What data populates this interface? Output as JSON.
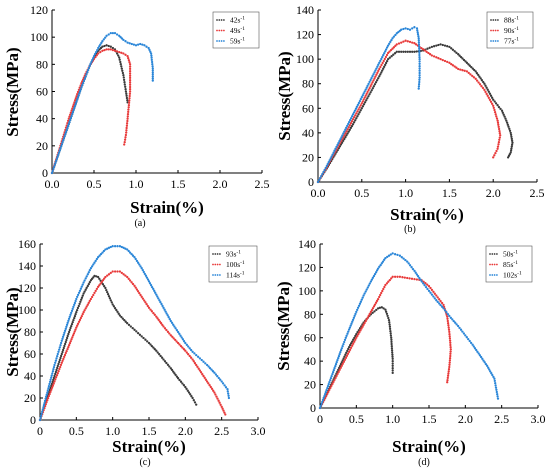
{
  "chart_data": [
    {
      "type": "scatter",
      "panel_label": "(a)",
      "xlabel": "Strain(%)",
      "ylabel": "Stress(MPa)",
      "xlim": [
        0,
        2.5
      ],
      "ylim": [
        0,
        120
      ],
      "xticks": [
        "0.0",
        "0.5",
        "1.0",
        "1.5",
        "2.0",
        "2.5"
      ],
      "yticks": [
        "0",
        "20",
        "40",
        "60",
        "80",
        "100",
        "120"
      ],
      "legend_position": "top-right",
      "series": [
        {
          "name": "42s",
          "color": "#3a3a3a",
          "x": [
            0.0,
            0.05,
            0.1,
            0.15,
            0.2,
            0.25,
            0.3,
            0.35,
            0.4,
            0.45,
            0.5,
            0.55,
            0.6,
            0.65,
            0.7,
            0.75,
            0.8,
            0.85,
            0.88,
            0.9
          ],
          "y": [
            0,
            9,
            18,
            27,
            36,
            45,
            54,
            63,
            71,
            79,
            85,
            90,
            93,
            94,
            93,
            91,
            85,
            72,
            60,
            52
          ]
        },
        {
          "name": "49s",
          "color": "#e83a3a",
          "x": [
            0.0,
            0.05,
            0.1,
            0.15,
            0.2,
            0.25,
            0.3,
            0.35,
            0.4,
            0.45,
            0.5,
            0.55,
            0.6,
            0.65,
            0.7,
            0.75,
            0.8,
            0.85,
            0.9,
            0.93,
            0.93,
            0.9,
            0.88,
            0.86
          ],
          "y": [
            0,
            10,
            20,
            30,
            40,
            49,
            58,
            66,
            73,
            79,
            84,
            88,
            90,
            91,
            91,
            90,
            89,
            88,
            86,
            80,
            60,
            40,
            28,
            21
          ]
        },
        {
          "name": "59s",
          "color": "#2a86d8",
          "x": [
            0.0,
            0.05,
            0.1,
            0.15,
            0.2,
            0.25,
            0.3,
            0.35,
            0.4,
            0.45,
            0.5,
            0.55,
            0.6,
            0.65,
            0.7,
            0.75,
            0.8,
            0.85,
            0.9,
            0.95,
            1.0,
            1.05,
            1.1,
            1.15,
            1.18,
            1.2,
            1.2
          ],
          "y": [
            0,
            9,
            18,
            27,
            36,
            45,
            54,
            63,
            71,
            79,
            86,
            92,
            97,
            101,
            103,
            103,
            101,
            98,
            96,
            95,
            94,
            95,
            94,
            92,
            88,
            77,
            68
          ]
        }
      ]
    },
    {
      "type": "scatter",
      "panel_label": "(b)",
      "xlabel": "Strain(%)",
      "ylabel": "Stress(MPa)",
      "xlim": [
        0,
        2.5
      ],
      "ylim": [
        0,
        140
      ],
      "xticks": [
        "0.0",
        "0.5",
        "1.0",
        "1.5",
        "2.0",
        "2.5"
      ],
      "yticks": [
        "0",
        "20",
        "40",
        "60",
        "80",
        "100",
        "120",
        "140"
      ],
      "legend_position": "top-right",
      "series": [
        {
          "name": "88s",
          "color": "#3a3a3a",
          "x": [
            0.0,
            0.1,
            0.2,
            0.3,
            0.4,
            0.5,
            0.6,
            0.7,
            0.8,
            0.9,
            1.0,
            1.1,
            1.2,
            1.3,
            1.4,
            1.5,
            1.6,
            1.7,
            1.8,
            1.9,
            2.0,
            2.1,
            2.15,
            2.2,
            2.22,
            2.2,
            2.17
          ],
          "y": [
            0,
            11,
            23,
            35,
            47,
            60,
            73,
            86,
            100,
            106,
            106,
            106,
            107,
            110,
            112,
            110,
            104,
            97,
            90,
            80,
            67,
            58,
            50,
            40,
            32,
            24,
            20
          ]
        },
        {
          "name": "90s",
          "color": "#e83a3a",
          "x": [
            0.0,
            0.1,
            0.2,
            0.3,
            0.4,
            0.5,
            0.6,
            0.7,
            0.8,
            0.9,
            1.0,
            1.1,
            1.2,
            1.3,
            1.4,
            1.5,
            1.6,
            1.7,
            1.8,
            1.9,
            2.0,
            2.05,
            2.08,
            2.05,
            2.0
          ],
          "y": [
            0,
            12,
            25,
            38,
            51,
            64,
            78,
            92,
            105,
            112,
            115,
            113,
            108,
            103,
            100,
            97,
            92,
            90,
            84,
            75,
            62,
            50,
            38,
            27,
            20
          ]
        },
        {
          "name": "77s",
          "color": "#2a86d8",
          "x": [
            0.0,
            0.1,
            0.2,
            0.3,
            0.4,
            0.5,
            0.6,
            0.7,
            0.8,
            0.85,
            0.9,
            0.95,
            1.0,
            1.05,
            1.1,
            1.13,
            1.15,
            1.16,
            1.16,
            1.15
          ],
          "y": [
            0,
            13,
            27,
            41,
            55,
            69,
            83,
            97,
            111,
            117,
            121,
            124,
            125,
            124,
            126,
            125,
            117,
            100,
            85,
            76
          ]
        }
      ]
    },
    {
      "type": "scatter",
      "panel_label": "(c)",
      "xlabel": "Strain(%)",
      "ylabel": "Stress(MPa)",
      "xlim": [
        0,
        3.0
      ],
      "ylim": [
        0,
        160
      ],
      "xticks": [
        "0",
        "0.5",
        "1.0",
        "1.5",
        "2.0",
        "2.5",
        "3.0"
      ],
      "yticks": [
        "0",
        "20",
        "40",
        "60",
        "80",
        "100",
        "120",
        "140",
        "160"
      ],
      "legend_position": "top-right",
      "series": [
        {
          "name": "93s",
          "color": "#3a3a3a",
          "x": [
            0.0,
            0.1,
            0.2,
            0.3,
            0.4,
            0.5,
            0.6,
            0.7,
            0.75,
            0.8,
            0.9,
            1.0,
            1.1,
            1.2,
            1.3,
            1.4,
            1.5,
            1.6,
            1.7,
            1.8,
            1.9,
            2.0,
            2.1,
            2.15
          ],
          "y": [
            0,
            20,
            40,
            60,
            80,
            98,
            115,
            127,
            131,
            130,
            120,
            105,
            95,
            88,
            82,
            76,
            70,
            63,
            55,
            47,
            38,
            30,
            20,
            14
          ]
        },
        {
          "name": "100s",
          "color": "#e83a3a",
          "x": [
            0.0,
            0.1,
            0.2,
            0.3,
            0.4,
            0.5,
            0.6,
            0.7,
            0.8,
            0.9,
            1.0,
            1.1,
            1.2,
            1.3,
            1.4,
            1.5,
            1.6,
            1.7,
            1.8,
            1.9,
            2.0,
            2.1,
            2.2,
            2.3,
            2.4,
            2.5,
            2.55
          ],
          "y": [
            0,
            18,
            35,
            52,
            68,
            84,
            98,
            110,
            121,
            130,
            135,
            135,
            130,
            122,
            112,
            102,
            94,
            85,
            77,
            70,
            63,
            55,
            45,
            35,
            25,
            12,
            5
          ]
        },
        {
          "name": "114s",
          "color": "#2a86d8",
          "x": [
            0.0,
            0.1,
            0.2,
            0.3,
            0.4,
            0.5,
            0.6,
            0.7,
            0.8,
            0.9,
            1.0,
            1.1,
            1.2,
            1.3,
            1.4,
            1.5,
            1.6,
            1.7,
            1.8,
            1.9,
            2.0,
            2.1,
            2.2,
            2.3,
            2.4,
            2.5,
            2.58,
            2.6
          ],
          "y": [
            0,
            25,
            50,
            72,
            92,
            110,
            125,
            138,
            148,
            155,
            158,
            158,
            155,
            148,
            138,
            126,
            114,
            102,
            90,
            80,
            70,
            62,
            56,
            50,
            43,
            35,
            28,
            20
          ]
        }
      ]
    },
    {
      "type": "scatter",
      "panel_label": "(d)",
      "xlabel": "Strain(%)",
      "ylabel": "Stress(MPa)",
      "xlim": [
        0,
        3.0
      ],
      "ylim": [
        0,
        140
      ],
      "xticks": [
        "0",
        "0.5",
        "1.0",
        "1.5",
        "2.0",
        "2.5",
        "3.0"
      ],
      "yticks": [
        "0",
        "20",
        "40",
        "60",
        "80",
        "100",
        "120",
        "140"
      ],
      "legend_position": "top-right",
      "series": [
        {
          "name": "50s",
          "color": "#3a3a3a",
          "x": [
            0.0,
            0.1,
            0.2,
            0.3,
            0.4,
            0.5,
            0.6,
            0.7,
            0.8,
            0.85,
            0.9,
            0.95,
            0.98,
            1.0,
            1.0
          ],
          "y": [
            0,
            13,
            26,
            39,
            52,
            63,
            73,
            80,
            85,
            86,
            84,
            75,
            60,
            42,
            30
          ]
        },
        {
          "name": "85s",
          "color": "#e83a3a",
          "x": [
            0.0,
            0.1,
            0.2,
            0.3,
            0.4,
            0.5,
            0.6,
            0.7,
            0.8,
            0.9,
            1.0,
            1.1,
            1.2,
            1.3,
            1.4,
            1.5,
            1.6,
            1.7,
            1.75,
            1.78,
            1.8,
            1.78,
            1.75
          ],
          "y": [
            0,
            12,
            24,
            36,
            48,
            60,
            71,
            82,
            93,
            105,
            112,
            112,
            111,
            110,
            109,
            104,
            96,
            88,
            78,
            65,
            50,
            35,
            22
          ]
        },
        {
          "name": "102s",
          "color": "#2a86d8",
          "x": [
            0.0,
            0.1,
            0.2,
            0.3,
            0.4,
            0.5,
            0.6,
            0.7,
            0.8,
            0.9,
            1.0,
            1.1,
            1.2,
            1.3,
            1.4,
            1.5,
            1.6,
            1.7,
            1.8,
            1.9,
            2.0,
            2.1,
            2.2,
            2.3,
            2.4,
            2.45
          ],
          "y": [
            0,
            17,
            34,
            51,
            67,
            82,
            96,
            108,
            119,
            128,
            132,
            130,
            125,
            117,
            108,
            100,
            92,
            85,
            77,
            70,
            62,
            54,
            45,
            36,
            25,
            8
          ]
        }
      ]
    }
  ],
  "legend_unit_suffix": "s",
  "legend_superscript": "-1"
}
